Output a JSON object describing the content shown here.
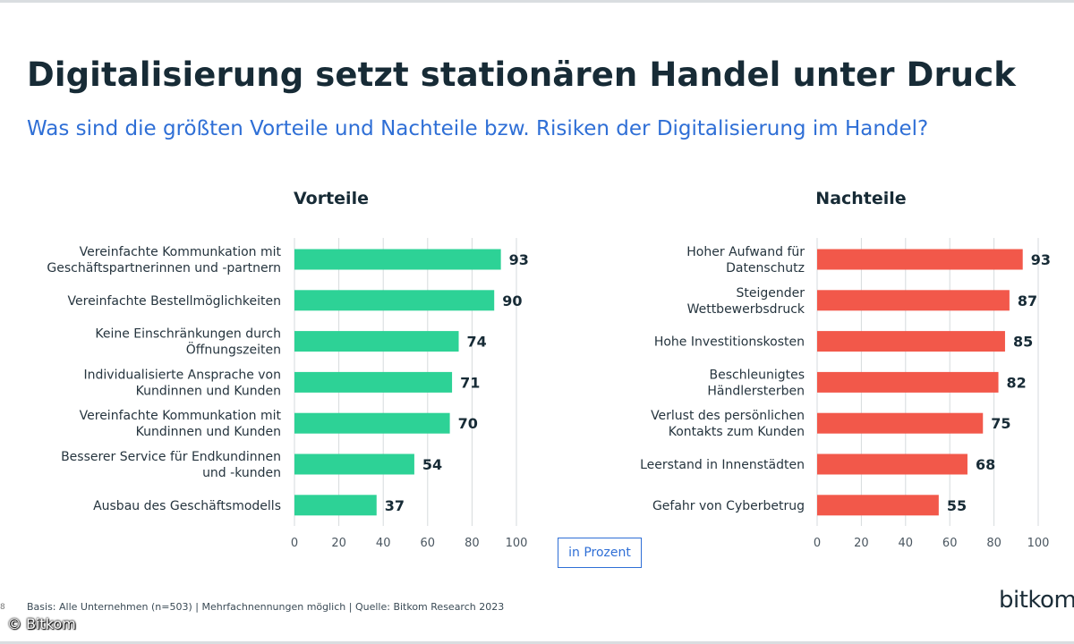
{
  "title": "Digitalisierung setzt stationären Handel unter Druck",
  "subtitle": "Was sind die größten Vorteile und Nachteile bzw. Risiken der Digitalisierung im Handel?",
  "unit_label": "in Prozent",
  "footnote": "Basis: Alle Unternehmen (n=503) | Mehrfachnennungen möglich | Quelle: Bitkom Research 2023",
  "brand": "bitkom",
  "copyright": "© Bitkom",
  "edge_mark": "8",
  "colors": {
    "vorteile": "#2dd296",
    "nachteile": "#f2584a",
    "subtitle": "#2f6fd6"
  },
  "chart_data": [
    {
      "type": "bar",
      "orientation": "horizontal",
      "title": "Vorteile",
      "categories": [
        "Vereinfachte Kommunkation mit\nGeschäftspartnerinnen und -partnern",
        "Vereinfachte Bestellmöglichkeiten",
        "Keine Einschränkungen durch\nÖffnungszeiten",
        "Individualisierte Ansprache von\nKundinnen und Kunden",
        "Vereinfachte Kommunkation mit\nKundinnen und Kunden",
        "Besserer Service für Endkundinnen\nund -kunden",
        "Ausbau des Geschäftsmodells"
      ],
      "values": [
        93,
        90,
        74,
        71,
        70,
        54,
        37
      ],
      "xlim": [
        0,
        100
      ],
      "xticks": [
        0,
        20,
        40,
        60,
        80,
        100
      ],
      "grid": true
    },
    {
      "type": "bar",
      "orientation": "horizontal",
      "title": "Nachteile",
      "categories": [
        "Hoher Aufwand für\nDatenschutz",
        "Steigender\nWettbewerbsdruck",
        "Hohe Investitionskosten",
        "Beschleunigtes\nHändlersterben",
        "Verlust des persönlichen\nKontakts zum Kunden",
        "Leerstand in Innenstädten",
        "Gefahr von Cyberbetrug"
      ],
      "values": [
        93,
        87,
        85,
        82,
        75,
        68,
        55
      ],
      "xlim": [
        0,
        100
      ],
      "xticks": [
        0,
        20,
        40,
        60,
        80,
        100
      ],
      "grid": true
    }
  ]
}
